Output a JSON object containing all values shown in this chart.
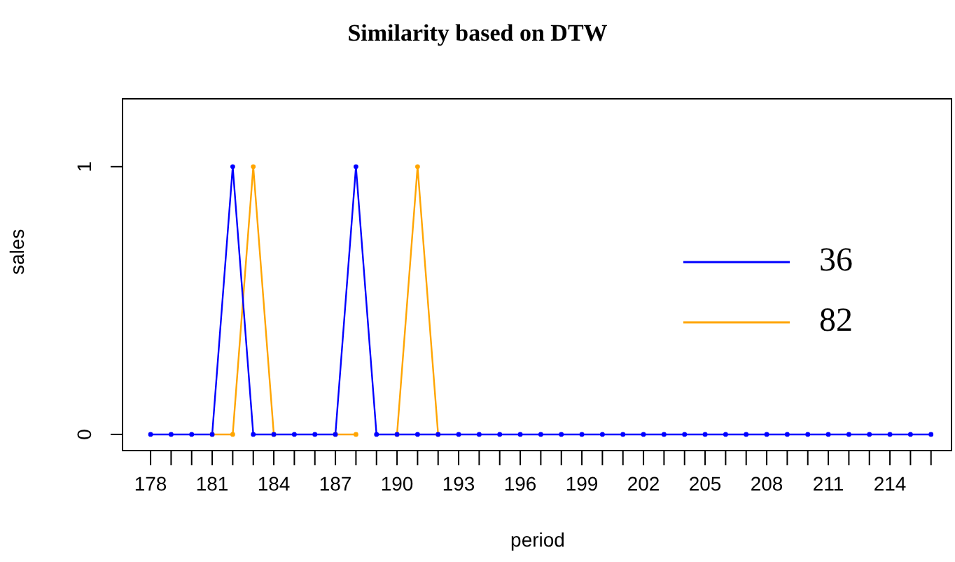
{
  "chart_data": {
    "type": "line",
    "title": "Similarity based on DTW",
    "xlabel": "period",
    "ylabel": "sales",
    "x": [
      178,
      179,
      180,
      181,
      182,
      183,
      184,
      185,
      186,
      187,
      188,
      189,
      190,
      191,
      192,
      193,
      194,
      195,
      196,
      197,
      198,
      199,
      200,
      201,
      202,
      203,
      204,
      205,
      206,
      207,
      208,
      209,
      210,
      211,
      212,
      213,
      214,
      215,
      216
    ],
    "series": [
      {
        "name": "36",
        "color": "#0000ff",
        "values": [
          0,
          0,
          0,
          0,
          1,
          0,
          0,
          0,
          0,
          0,
          1,
          0,
          0,
          0,
          0,
          0,
          0,
          0,
          0,
          0,
          0,
          0,
          0,
          0,
          0,
          0,
          0,
          0,
          0,
          0,
          0,
          0,
          0,
          0,
          0,
          0,
          0,
          0,
          0
        ]
      },
      {
        "name": "82",
        "color": "#ffa500",
        "values": [
          null,
          null,
          null,
          0,
          0,
          1,
          0,
          null,
          null,
          0,
          0,
          null,
          0,
          1,
          0,
          null,
          null,
          null,
          null,
          null,
          null,
          null,
          null,
          null,
          null,
          null,
          null,
          null,
          null,
          null,
          null,
          null,
          null,
          null,
          null,
          null,
          null,
          null,
          null
        ]
      }
    ],
    "xlim": [
      176.6,
      217.1
    ],
    "ylim": [
      -0.063,
      1.256
    ],
    "xticks": [
      178,
      {
        "value": 179,
        "label": null
      },
      {
        "value": 180,
        "label": null
      },
      181,
      {
        "value": 182,
        "label": null
      },
      {
        "value": 183,
        "label": null
      },
      184,
      {
        "value": 185,
        "label": null
      },
      {
        "value": 186,
        "label": null
      },
      187,
      {
        "value": 188,
        "label": null
      },
      {
        "value": 189,
        "label": null
      },
      190,
      {
        "value": 191,
        "label": null
      },
      {
        "value": 192,
        "label": null
      },
      193,
      {
        "value": 194,
        "label": null
      },
      {
        "value": 195,
        "label": null
      },
      196,
      {
        "value": 197,
        "label": null
      },
      {
        "value": 198,
        "label": null
      },
      199,
      {
        "value": 200,
        "label": null
      },
      {
        "value": 201,
        "label": null
      },
      202,
      {
        "value": 203,
        "label": null
      },
      {
        "value": 204,
        "label": null
      },
      205,
      {
        "value": 206,
        "label": null
      },
      {
        "value": 207,
        "label": null
      },
      208,
      {
        "value": 209,
        "label": null
      },
      {
        "value": 210,
        "label": null
      },
      211,
      {
        "value": 212,
        "label": null
      },
      {
        "value": 213,
        "label": null
      },
      214,
      {
        "value": 215,
        "label": null
      },
      {
        "value": 216,
        "label": null
      }
    ],
    "yticks": [
      0,
      1
    ],
    "legend": "right",
    "marker": "circle",
    "line_style": "solid",
    "grid": false
  }
}
